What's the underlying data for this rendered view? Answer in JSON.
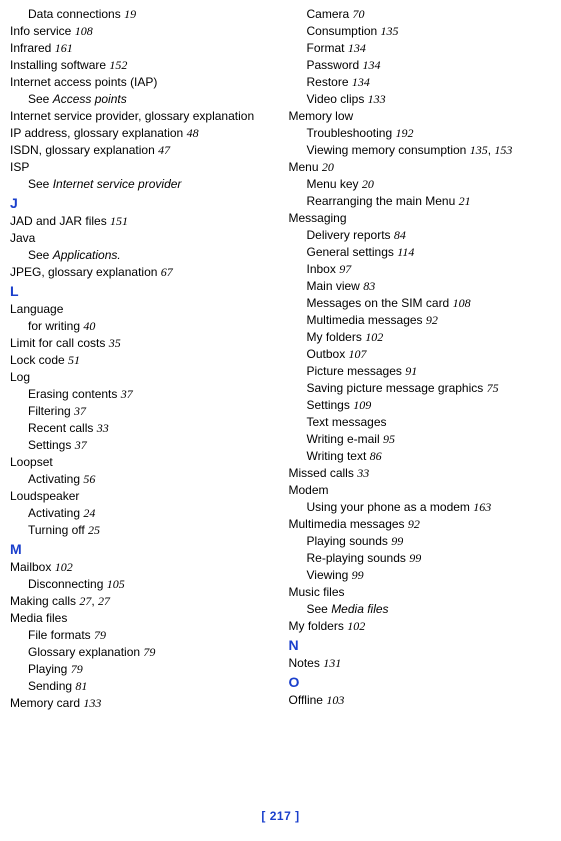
{
  "footer": "[ 217 ]",
  "left": [
    {
      "lvl": 1,
      "t": "Data connections ",
      "p": "19"
    },
    {
      "lvl": 0,
      "t": "Info service ",
      "p": "108"
    },
    {
      "lvl": 0,
      "t": "Infrared ",
      "p": "161"
    },
    {
      "lvl": 0,
      "t": "Installing software ",
      "p": "152"
    },
    {
      "lvl": 0,
      "t": "Internet access points (IAP)"
    },
    {
      "lvl": 1,
      "t": "See ",
      "see": "Access points"
    },
    {
      "lvl": 0,
      "t": "Internet service provider, glossary explanation"
    },
    {
      "lvl": 0,
      "t": "IP address, glossary explanation ",
      "p": "48"
    },
    {
      "lvl": 0,
      "t": "ISDN, glossary explanation ",
      "p": "47"
    },
    {
      "lvl": 0,
      "t": "ISP"
    },
    {
      "lvl": 1,
      "t": "See ",
      "see": "Internet service provider"
    },
    {
      "lvl": 0,
      "letter": "J"
    },
    {
      "lvl": 0,
      "t": "JAD and JAR files ",
      "p": "151"
    },
    {
      "lvl": 0,
      "t": "Java"
    },
    {
      "lvl": 1,
      "t": "See ",
      "see": "Applications."
    },
    {
      "lvl": 0,
      "t": "JPEG, glossary explanation ",
      "p": "67"
    },
    {
      "lvl": 0,
      "letter": "L"
    },
    {
      "lvl": 0,
      "t": "Language"
    },
    {
      "lvl": 1,
      "t": "for writing ",
      "p": "40"
    },
    {
      "lvl": 0,
      "t": "Limit for call costs ",
      "p": "35"
    },
    {
      "lvl": 0,
      "t": "Lock code ",
      "p": "51"
    },
    {
      "lvl": 0,
      "t": "Log"
    },
    {
      "lvl": 1,
      "t": "Erasing contents ",
      "p": "37"
    },
    {
      "lvl": 1,
      "t": "Filtering ",
      "p": "37"
    },
    {
      "lvl": 1,
      "t": "Recent calls ",
      "p": "33"
    },
    {
      "lvl": 1,
      "t": "Settings ",
      "p": "37"
    },
    {
      "lvl": 0,
      "t": "Loopset"
    },
    {
      "lvl": 1,
      "t": "Activating ",
      "p": "56"
    },
    {
      "lvl": 0,
      "t": "Loudspeaker"
    },
    {
      "lvl": 1,
      "t": "Activating ",
      "p": "24"
    },
    {
      "lvl": 1,
      "t": "Turning off ",
      "p": "25"
    },
    {
      "lvl": 0,
      "letter": "M"
    },
    {
      "lvl": 0,
      "t": "Mailbox ",
      "p": "102"
    },
    {
      "lvl": 1,
      "t": "Disconnecting ",
      "p": "105"
    },
    {
      "lvl": 0,
      "t": "Making calls ",
      "p": "27",
      "p2": "27"
    },
    {
      "lvl": 0,
      "t": "Media files"
    },
    {
      "lvl": 1,
      "t": "File formats ",
      "p": "79"
    },
    {
      "lvl": 1,
      "t": "Glossary explanation ",
      "p": "79"
    },
    {
      "lvl": 1,
      "t": "Playing ",
      "p": "79"
    },
    {
      "lvl": 1,
      "t": "Sending ",
      "p": "81"
    },
    {
      "lvl": 0,
      "t": "Memory card ",
      "p": "133"
    }
  ],
  "right": [
    {
      "lvl": 1,
      "t": "Camera ",
      "p": "70"
    },
    {
      "lvl": 1,
      "t": "Consumption ",
      "p": "135"
    },
    {
      "lvl": 1,
      "t": "Format ",
      "p": "134"
    },
    {
      "lvl": 1,
      "t": "Password ",
      "p": "134"
    },
    {
      "lvl": 1,
      "t": "Restore ",
      "p": "134"
    },
    {
      "lvl": 1,
      "t": "Video clips ",
      "p": "133"
    },
    {
      "lvl": 0,
      "t": "Memory low"
    },
    {
      "lvl": 1,
      "t": "Troubleshooting ",
      "p": "192"
    },
    {
      "lvl": 1,
      "t": "Viewing memory consumption ",
      "p": "135",
      "p2": "153"
    },
    {
      "lvl": 0,
      "t": "Menu ",
      "p": "20"
    },
    {
      "lvl": 1,
      "t": "Menu key ",
      "p": "20"
    },
    {
      "lvl": 1,
      "t": "Rearranging the main Menu ",
      "p": "21"
    },
    {
      "lvl": 0,
      "t": "Messaging"
    },
    {
      "lvl": 1,
      "t": "Delivery reports ",
      "p": "84"
    },
    {
      "lvl": 1,
      "t": "General settings ",
      "p": "114"
    },
    {
      "lvl": 1,
      "t": "Inbox ",
      "p": "97"
    },
    {
      "lvl": 1,
      "t": "Main view ",
      "p": "83"
    },
    {
      "lvl": 1,
      "t": "Messages on the SIM card ",
      "p": "108"
    },
    {
      "lvl": 1,
      "t": "Multimedia messages ",
      "p": "92"
    },
    {
      "lvl": 1,
      "t": "My folders ",
      "p": "102"
    },
    {
      "lvl": 1,
      "t": "Outbox ",
      "p": "107"
    },
    {
      "lvl": 1,
      "t": "Picture messages ",
      "p": "91"
    },
    {
      "lvl": 1,
      "t": "Saving picture message graphics ",
      "p": "75"
    },
    {
      "lvl": 1,
      "t": "Settings ",
      "p": "109"
    },
    {
      "lvl": 1,
      "t": "Text messages"
    },
    {
      "lvl": 1,
      "t": "Writing e-mail ",
      "p": "95"
    },
    {
      "lvl": 1,
      "t": "Writing text ",
      "p": "86"
    },
    {
      "lvl": 0,
      "t": "Missed calls ",
      "p": "33"
    },
    {
      "lvl": 0,
      "t": "Modem"
    },
    {
      "lvl": 1,
      "t": "Using your phone as a modem ",
      "p": "163"
    },
    {
      "lvl": 0,
      "t": "Multimedia messages ",
      "p": "92"
    },
    {
      "lvl": 1,
      "t": "Playing sounds ",
      "p": "99"
    },
    {
      "lvl": 1,
      "t": "Re-playing sounds ",
      "p": "99"
    },
    {
      "lvl": 1,
      "t": "Viewing ",
      "p": "99"
    },
    {
      "lvl": 0,
      "t": "Music files"
    },
    {
      "lvl": 1,
      "t": "See ",
      "see": "Media files"
    },
    {
      "lvl": 0,
      "t": "My folders ",
      "p": "102"
    },
    {
      "lvl": 0,
      "letter": "N"
    },
    {
      "lvl": 0,
      "t": "Notes ",
      "p": "131"
    },
    {
      "lvl": 0,
      "letter": "O"
    },
    {
      "lvl": 0,
      "t": "Offline ",
      "p": "103"
    }
  ]
}
